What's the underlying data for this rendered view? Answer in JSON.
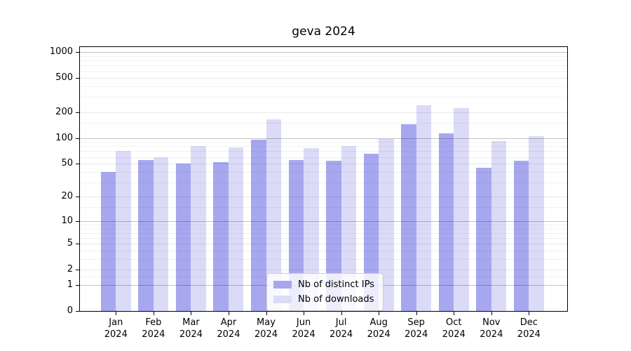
{
  "chart_data": {
    "type": "bar",
    "title": "geva 2024",
    "categories": [
      "Jan",
      "Feb",
      "Mar",
      "Apr",
      "May",
      "Jun",
      "Jul",
      "Aug",
      "Sep",
      "Oct",
      "Nov",
      "Dec"
    ],
    "x_tick_second_line": "2024",
    "series": [
      {
        "name": "Nb of distinct IPs",
        "color": "#a7a7f0",
        "values": [
          40,
          55,
          50,
          52,
          96,
          55,
          54,
          66,
          145,
          113,
          45,
          54
        ]
      },
      {
        "name": "Nb of downloads",
        "color": "#dbdbf8",
        "values": [
          71,
          60,
          80,
          77,
          167,
          76,
          80,
          97,
          240,
          222,
          93,
          106
        ]
      }
    ],
    "xlabel": "",
    "ylabel": "",
    "y_scale": "log10(1+value), 0 at baseline",
    "ylim": [
      0,
      1000
    ],
    "y_ticks": [
      0,
      1,
      2,
      5,
      10,
      20,
      50,
      100,
      200,
      500,
      1000
    ],
    "y_tick_labels": [
      "0",
      "1",
      "2",
      "5",
      "10",
      "20",
      "50",
      "100",
      "200",
      "500",
      "1000"
    ],
    "y_minor_ticks": [
      1.5,
      3,
      4,
      6,
      7,
      8,
      9,
      15,
      30,
      40,
      60,
      70,
      80,
      90,
      150,
      300,
      400,
      600,
      700,
      800,
      900
    ],
    "grid": "horizontal, drawn over bars",
    "legend_position": "bottom-center"
  }
}
